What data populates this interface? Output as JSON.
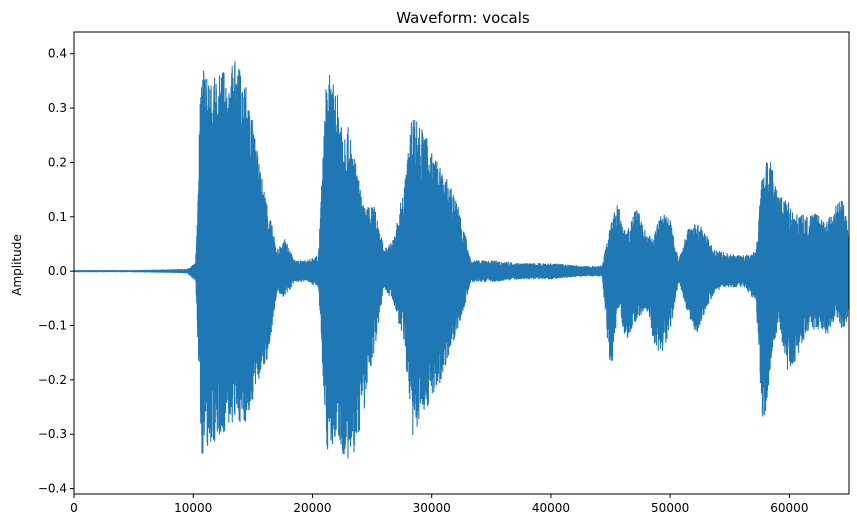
{
  "chart_data": {
    "type": "line",
    "title": "Waveform: vocals",
    "xlabel": "",
    "ylabel": "Amplitude",
    "xlim": [
      0,
      65000
    ],
    "ylim": [
      -0.41,
      0.44
    ],
    "xticks": [
      0,
      10000,
      20000,
      30000,
      40000,
      50000,
      60000
    ],
    "xtick_labels": [
      "0",
      "10000",
      "20000",
      "30000",
      "40000",
      "50000",
      "60000"
    ],
    "yticks": [
      -0.4,
      -0.3,
      -0.2,
      -0.1,
      0.0,
      0.1,
      0.2,
      0.3,
      0.4
    ],
    "ytick_labels": [
      "−0.4",
      "−0.3",
      "−0.2",
      "−0.1",
      "0.0",
      "0.1",
      "0.2",
      "0.3",
      "0.4"
    ],
    "grid": false,
    "legend": "none",
    "series": [
      {
        "color": "#1f77b4",
        "envelope": {
          "x": [
            0,
            5000,
            9500,
            10200,
            10700,
            11500,
            12500,
            13500,
            14500,
            15500,
            16300,
            17000,
            17700,
            18500,
            19500,
            20500,
            21200,
            22200,
            23200,
            24300,
            25300,
            26000,
            26800,
            27700,
            28400,
            29300,
            30500,
            31500,
            32300,
            33300,
            35000,
            37500,
            40000,
            42500,
            44300,
            45000,
            45600,
            46300,
            47200,
            48000,
            48600,
            49200,
            50000,
            50700,
            51500,
            52300,
            53000,
            53700,
            54500,
            55500,
            56300,
            57200,
            57800,
            58400,
            59100,
            59800,
            60600,
            61500,
            62300,
            63100,
            63900,
            64500,
            65000
          ],
          "upper": [
            0.002,
            0.002,
            0.004,
            0.015,
            0.4,
            0.35,
            0.37,
            0.39,
            0.35,
            0.2,
            0.12,
            0.04,
            0.06,
            0.02,
            0.02,
            0.03,
            0.375,
            0.32,
            0.25,
            0.12,
            0.12,
            0.04,
            0.06,
            0.16,
            0.3,
            0.26,
            0.2,
            0.16,
            0.12,
            0.02,
            0.02,
            0.015,
            0.015,
            0.01,
            0.01,
            0.09,
            0.125,
            0.07,
            0.12,
            0.07,
            0.06,
            0.11,
            0.1,
            0.02,
            0.08,
            0.09,
            0.07,
            0.04,
            0.035,
            0.03,
            0.03,
            0.04,
            0.2,
            0.21,
            0.14,
            0.13,
            0.11,
            0.1,
            0.11,
            0.09,
            0.13,
            0.13,
            0.07
          ],
          "lower": [
            -0.002,
            -0.002,
            -0.004,
            -0.02,
            -0.34,
            -0.32,
            -0.3,
            -0.28,
            -0.28,
            -0.2,
            -0.16,
            -0.04,
            -0.05,
            -0.02,
            -0.02,
            -0.03,
            -0.33,
            -0.32,
            -0.37,
            -0.26,
            -0.13,
            -0.03,
            -0.06,
            -0.14,
            -0.31,
            -0.26,
            -0.22,
            -0.15,
            -0.1,
            -0.02,
            -0.02,
            -0.015,
            -0.015,
            -0.01,
            -0.01,
            -0.2,
            -0.07,
            -0.13,
            -0.09,
            -0.07,
            -0.13,
            -0.16,
            -0.11,
            -0.02,
            -0.08,
            -0.13,
            -0.07,
            -0.04,
            -0.03,
            -0.03,
            -0.03,
            -0.06,
            -0.31,
            -0.19,
            -0.09,
            -0.19,
            -0.16,
            -0.11,
            -0.11,
            -0.12,
            -0.09,
            -0.11,
            -0.08
          ]
        }
      }
    ]
  }
}
